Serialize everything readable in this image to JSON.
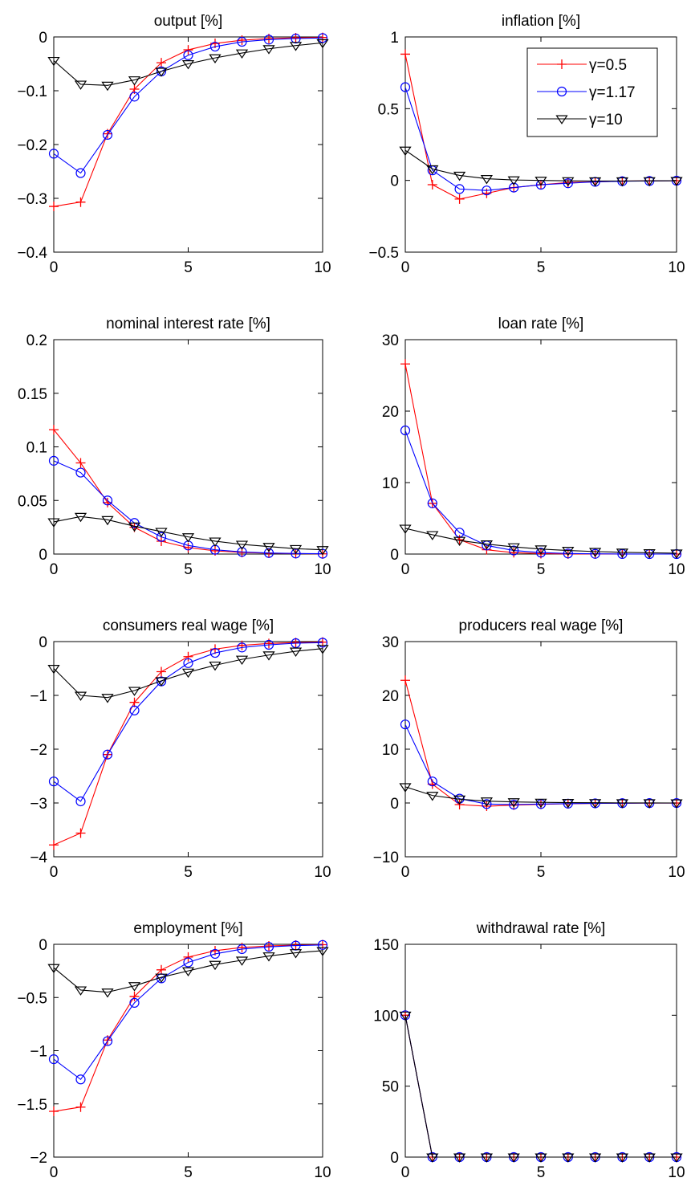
{
  "chart_data": [
    {
      "type": "line",
      "title": "output [%]",
      "xlim": [
        0,
        10
      ],
      "ylim": [
        -0.4,
        0
      ],
      "xticks": [
        0,
        5,
        10
      ],
      "xtick_labels": [
        "0",
        "5",
        "10"
      ],
      "yticks": [
        -0.4,
        -0.3,
        -0.2,
        -0.1,
        0
      ],
      "ytick_labels": [
        "−0.4",
        "−0.3",
        "−0.2",
        "−0.1",
        "0"
      ],
      "x": [
        0,
        1,
        2,
        3,
        4,
        5,
        6,
        7,
        8,
        9,
        10
      ],
      "series": [
        {
          "name": "γ=0.5",
          "color": "#ff0000",
          "marker": "plus",
          "values": [
            -0.315,
            -0.307,
            -0.18,
            -0.097,
            -0.048,
            -0.024,
            -0.012,
            -0.006,
            -0.003,
            -0.0015,
            -0.001
          ]
        },
        {
          "name": "γ=1.17",
          "color": "#0000ff",
          "marker": "circle",
          "values": [
            -0.217,
            -0.253,
            -0.182,
            -0.111,
            -0.064,
            -0.034,
            -0.018,
            -0.009,
            -0.005,
            -0.003,
            -0.002
          ]
        },
        {
          "name": "γ=10",
          "color": "#000000",
          "marker": "triangle",
          "values": [
            -0.044,
            -0.088,
            -0.09,
            -0.08,
            -0.064,
            -0.05,
            -0.039,
            -0.03,
            -0.022,
            -0.016,
            -0.011
          ]
        }
      ],
      "legend": false
    },
    {
      "type": "line",
      "title": "inflation [%]",
      "xlim": [
        0,
        10
      ],
      "ylim": [
        -0.5,
        1
      ],
      "xticks": [
        0,
        5,
        10
      ],
      "xtick_labels": [
        "0",
        "5",
        "10"
      ],
      "yticks": [
        -0.5,
        0,
        0.5,
        1
      ],
      "ytick_labels": [
        "−0.5",
        "0",
        "0.5",
        "1"
      ],
      "x": [
        0,
        1,
        2,
        3,
        4,
        5,
        6,
        7,
        8,
        9,
        10
      ],
      "series": [
        {
          "name": "γ=0.5",
          "color": "#ff0000",
          "marker": "plus",
          "values": [
            0.88,
            -0.03,
            -0.13,
            -0.09,
            -0.05,
            -0.03,
            -0.015,
            -0.01,
            -0.005,
            -0.003,
            -0.002
          ]
        },
        {
          "name": "γ=1.17",
          "color": "#0000ff",
          "marker": "circle",
          "values": [
            0.65,
            0.07,
            -0.06,
            -0.07,
            -0.05,
            -0.03,
            -0.02,
            -0.01,
            -0.006,
            -0.004,
            -0.002
          ]
        },
        {
          "name": "γ=10",
          "color": "#000000",
          "marker": "triangle",
          "values": [
            0.21,
            0.08,
            0.035,
            0.012,
            0.003,
            0.0,
            -0.003,
            -0.004,
            -0.004,
            -0.003,
            -0.002
          ]
        }
      ],
      "legend": true,
      "legend_position": "top-right"
    },
    {
      "type": "line",
      "title": "nominal interest rate [%]",
      "xlim": [
        0,
        10
      ],
      "ylim": [
        0,
        0.2
      ],
      "xticks": [
        0,
        5,
        10
      ],
      "xtick_labels": [
        "0",
        "5",
        "10"
      ],
      "yticks": [
        0,
        0.05,
        0.1,
        0.15,
        0.2
      ],
      "ytick_labels": [
        "0",
        "0.05",
        "0.1",
        "0.15",
        "0.2"
      ],
      "x": [
        0,
        1,
        2,
        3,
        4,
        5,
        6,
        7,
        8,
        9,
        10
      ],
      "series": [
        {
          "name": "γ=0.5",
          "color": "#ff0000",
          "marker": "plus",
          "values": [
            0.116,
            0.085,
            0.048,
            0.025,
            0.012,
            0.006,
            0.003,
            0.0015,
            0.0008,
            0.0004,
            0.0002
          ]
        },
        {
          "name": "γ=1.17",
          "color": "#0000ff",
          "marker": "circle",
          "values": [
            0.087,
            0.076,
            0.05,
            0.029,
            0.016,
            0.008,
            0.004,
            0.002,
            0.001,
            0.0005,
            0.0003
          ]
        },
        {
          "name": "γ=10",
          "color": "#000000",
          "marker": "triangle",
          "values": [
            0.03,
            0.035,
            0.032,
            0.026,
            0.021,
            0.016,
            0.012,
            0.009,
            0.007,
            0.005,
            0.004
          ]
        }
      ],
      "legend": false
    },
    {
      "type": "line",
      "title": "loan rate [%]",
      "xlim": [
        0,
        10
      ],
      "ylim": [
        0,
        30
      ],
      "xticks": [
        0,
        5,
        10
      ],
      "xtick_labels": [
        "0",
        "5",
        "10"
      ],
      "yticks": [
        0,
        10,
        20,
        30
      ],
      "ytick_labels": [
        "0",
        "10",
        "20",
        "30"
      ],
      "x": [
        0,
        1,
        2,
        3,
        4,
        5,
        6,
        7,
        8,
        9,
        10
      ],
      "series": [
        {
          "name": "γ=0.5",
          "color": "#ff0000",
          "marker": "plus",
          "values": [
            26.6,
            7.1,
            2.0,
            0.6,
            0.2,
            0.06,
            0.02,
            0.01,
            0.0,
            0.0,
            0.0
          ]
        },
        {
          "name": "γ=1.17",
          "color": "#0000ff",
          "marker": "circle",
          "values": [
            17.3,
            7.1,
            3.0,
            1.2,
            0.5,
            0.2,
            0.08,
            0.03,
            0.01,
            0.0,
            0.0
          ]
        },
        {
          "name": "γ=10",
          "color": "#000000",
          "marker": "triangle",
          "values": [
            3.6,
            2.7,
            1.9,
            1.4,
            1.0,
            0.7,
            0.5,
            0.35,
            0.25,
            0.17,
            0.12
          ]
        }
      ],
      "legend": false
    },
    {
      "type": "line",
      "title": "consumers real wage [%]",
      "xlim": [
        0,
        10
      ],
      "ylim": [
        -4,
        0
      ],
      "xticks": [
        0,
        5,
        10
      ],
      "xtick_labels": [
        "0",
        "5",
        "10"
      ],
      "yticks": [
        -4,
        -3,
        -2,
        -1,
        0
      ],
      "ytick_labels": [
        "−4",
        "−3",
        "−2",
        "−1",
        "0"
      ],
      "x": [
        0,
        1,
        2,
        3,
        4,
        5,
        6,
        7,
        8,
        9,
        10
      ],
      "series": [
        {
          "name": "γ=0.5",
          "color": "#ff0000",
          "marker": "plus",
          "values": [
            -3.78,
            -3.56,
            -2.1,
            -1.13,
            -0.56,
            -0.28,
            -0.14,
            -0.07,
            -0.035,
            -0.018,
            -0.01
          ]
        },
        {
          "name": "γ=1.17",
          "color": "#0000ff",
          "marker": "circle",
          "values": [
            -2.6,
            -2.97,
            -2.1,
            -1.28,
            -0.74,
            -0.4,
            -0.21,
            -0.11,
            -0.06,
            -0.03,
            -0.02
          ]
        },
        {
          "name": "γ=10",
          "color": "#000000",
          "marker": "triangle",
          "values": [
            -0.5,
            -1.0,
            -1.04,
            -0.91,
            -0.73,
            -0.57,
            -0.44,
            -0.33,
            -0.25,
            -0.18,
            -0.13
          ]
        }
      ],
      "legend": false
    },
    {
      "type": "line",
      "title": "producers real wage [%]",
      "xlim": [
        0,
        10
      ],
      "ylim": [
        -10,
        30
      ],
      "xticks": [
        0,
        5,
        10
      ],
      "xtick_labels": [
        "0",
        "5",
        "10"
      ],
      "yticks": [
        -10,
        0,
        10,
        20,
        30
      ],
      "ytick_labels": [
        "−10",
        "0",
        "10",
        "20",
        "30"
      ],
      "x": [
        0,
        1,
        2,
        3,
        4,
        5,
        6,
        7,
        8,
        9,
        10
      ],
      "series": [
        {
          "name": "γ=0.5",
          "color": "#ff0000",
          "marker": "plus",
          "values": [
            22.8,
            3.5,
            -0.3,
            -0.6,
            -0.4,
            -0.25,
            -0.15,
            -0.08,
            -0.04,
            -0.02,
            -0.01
          ]
        },
        {
          "name": "γ=1.17",
          "color": "#0000ff",
          "marker": "circle",
          "values": [
            14.6,
            4.0,
            0.8,
            -0.2,
            -0.3,
            -0.2,
            -0.12,
            -0.07,
            -0.04,
            -0.02,
            -0.01
          ]
        },
        {
          "name": "γ=10",
          "color": "#000000",
          "marker": "triangle",
          "values": [
            3.0,
            1.4,
            0.7,
            0.35,
            0.2,
            0.12,
            0.07,
            0.04,
            0.02,
            0.01,
            0.0
          ]
        }
      ],
      "legend": false
    },
    {
      "type": "line",
      "title": "employment [%]",
      "xlim": [
        0,
        10
      ],
      "ylim": [
        -2,
        0
      ],
      "xticks": [
        0,
        5,
        10
      ],
      "xtick_labels": [
        "0",
        "5",
        "10"
      ],
      "yticks": [
        -2,
        -1.5,
        -1,
        -0.5,
        0
      ],
      "ytick_labels": [
        "−2",
        "−1.5",
        "−1",
        "−0.5",
        "0"
      ],
      "x": [
        0,
        1,
        2,
        3,
        4,
        5,
        6,
        7,
        8,
        9,
        10
      ],
      "series": [
        {
          "name": "γ=0.5",
          "color": "#ff0000",
          "marker": "plus",
          "values": [
            -1.57,
            -1.53,
            -0.9,
            -0.49,
            -0.24,
            -0.12,
            -0.06,
            -0.03,
            -0.015,
            -0.008,
            -0.004
          ]
        },
        {
          "name": "γ=1.17",
          "color": "#0000ff",
          "marker": "circle",
          "values": [
            -1.08,
            -1.27,
            -0.91,
            -0.55,
            -0.32,
            -0.17,
            -0.09,
            -0.045,
            -0.024,
            -0.012,
            -0.006
          ]
        },
        {
          "name": "γ=10",
          "color": "#000000",
          "marker": "triangle",
          "values": [
            -0.22,
            -0.43,
            -0.45,
            -0.39,
            -0.31,
            -0.25,
            -0.19,
            -0.15,
            -0.11,
            -0.08,
            -0.06
          ]
        }
      ],
      "legend": false
    },
    {
      "type": "line",
      "title": "withdrawal rate [%]",
      "xlim": [
        0,
        10
      ],
      "ylim": [
        0,
        150
      ],
      "xticks": [
        0,
        5,
        10
      ],
      "xtick_labels": [
        "0",
        "5",
        "10"
      ],
      "yticks": [
        0,
        50,
        100,
        150
      ],
      "ytick_labels": [
        "0",
        "50",
        "100",
        "150"
      ],
      "x": [
        0,
        1,
        2,
        3,
        4,
        5,
        6,
        7,
        8,
        9,
        10
      ],
      "series": [
        {
          "name": "γ=0.5",
          "color": "#ff0000",
          "marker": "plus",
          "values": [
            100,
            0,
            0,
            0,
            0,
            0,
            0,
            0,
            0,
            0,
            0
          ]
        },
        {
          "name": "γ=1.17",
          "color": "#0000ff",
          "marker": "circle",
          "values": [
            100,
            0,
            0,
            0,
            0,
            0,
            0,
            0,
            0,
            0,
            0
          ]
        },
        {
          "name": "γ=10",
          "color": "#000000",
          "marker": "triangle",
          "values": [
            100,
            0,
            0,
            0,
            0,
            0,
            0,
            0,
            0,
            0,
            0
          ]
        }
      ],
      "legend": false
    }
  ]
}
